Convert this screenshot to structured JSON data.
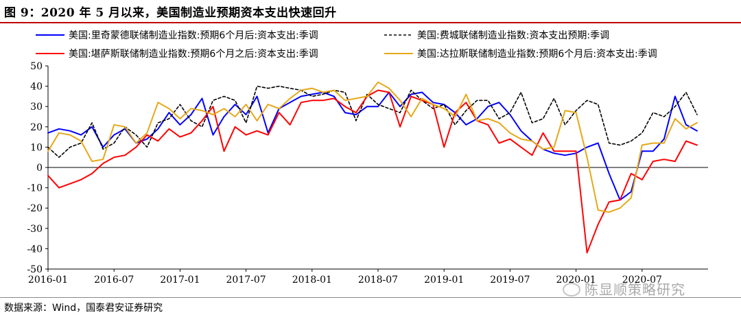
{
  "figure": {
    "title": "图 9：2020 年 5 月以来，美国制造业预期资本支出快速回升",
    "source": "数据来源：Wind，国泰君安证券研究",
    "watermark": "陈显顺策略研究"
  },
  "chart_data": {
    "type": "line",
    "ylim": [
      -50,
      50
    ],
    "yticks": [
      50,
      40,
      30,
      20,
      10,
      0,
      -10,
      -20,
      -30,
      -40,
      -50
    ],
    "xlim": [
      0,
      60
    ],
    "xtick_labels": [
      "2016-01",
      "2016-07",
      "2017-01",
      "2017-07",
      "2018-01",
      "2018-07",
      "2019-01",
      "2019-07",
      "2020-01",
      "2020-07"
    ],
    "xtick_positions": [
      0,
      6,
      12,
      18,
      24,
      30,
      36,
      42,
      48,
      54
    ],
    "grid": false,
    "legend": "top",
    "series": [
      {
        "name": "美国:里奇蒙德联储制造业指数:预期6个月后:资本支出:季调",
        "color": "#0000ff",
        "dash": "none",
        "values": [
          17,
          19,
          18,
          16,
          20,
          10,
          16,
          19,
          12,
          14,
          19,
          27,
          21,
          26,
          34,
          16,
          25,
          31,
          26,
          35,
          17,
          29,
          32,
          35,
          36,
          37,
          35,
          27,
          26,
          30,
          30,
          37,
          30,
          36,
          37,
          32,
          31,
          27,
          21,
          24,
          30,
          32,
          26,
          18,
          13,
          9,
          7,
          6,
          7,
          10,
          12,
          -3,
          -16,
          -12,
          8,
          8,
          14,
          35,
          21,
          18
        ]
      },
      {
        "name": "美国:费城联储制造业指数:资本支出预期:季调",
        "color": "#000000",
        "dash": "4 3",
        "values": [
          10,
          5,
          10,
          12,
          22,
          9,
          12,
          20,
          16,
          10,
          22,
          24,
          31,
          23,
          20,
          33,
          35,
          33,
          22,
          40,
          39,
          40,
          39,
          38,
          35,
          36,
          38,
          37,
          23,
          36,
          31,
          29,
          27,
          38,
          33,
          29,
          31,
          21,
          28,
          33,
          33,
          24,
          27,
          37,
          22,
          24,
          34,
          21,
          28,
          33,
          31,
          12,
          11,
          13,
          17,
          27,
          25,
          30,
          37,
          26
        ]
      },
      {
        "name": "美国:堪萨斯联储制造业指数:预期6个月之后:资本支出:季调",
        "color": "#ff0000",
        "dash": "none",
        "values": [
          -4,
          -10,
          -8,
          -6,
          -3,
          2,
          5,
          6,
          10,
          16,
          13,
          19,
          15,
          17,
          23,
          30,
          8,
          20,
          16,
          18,
          16,
          27,
          21,
          32,
          33,
          33,
          34,
          30,
          27,
          35,
          38,
          37,
          20,
          35,
          33,
          31,
          10,
          27,
          32,
          23,
          21,
          12,
          14,
          10,
          6,
          17,
          8,
          8,
          8,
          -42,
          -28,
          -17,
          -16,
          -3,
          -6,
          3,
          4,
          3,
          13,
          11
        ]
      },
      {
        "name": "美国:达拉斯联储制造业指数:预期6个月后:资本支出:季调",
        "color": "#e6a817",
        "dash": "none",
        "values": [
          8,
          17,
          16,
          13,
          3,
          4,
          21,
          20,
          12,
          17,
          32,
          29,
          24,
          29,
          28,
          26,
          29,
          25,
          31,
          23,
          31,
          29,
          34,
          38,
          39,
          37,
          38,
          33,
          34,
          35,
          42,
          39,
          33,
          25,
          34,
          31,
          29,
          25,
          36,
          23,
          24,
          22,
          17,
          14,
          13,
          9,
          10,
          28,
          27,
          5,
          -21,
          -22,
          -20,
          -15,
          11,
          12,
          12,
          24,
          19,
          22
        ]
      }
    ]
  }
}
